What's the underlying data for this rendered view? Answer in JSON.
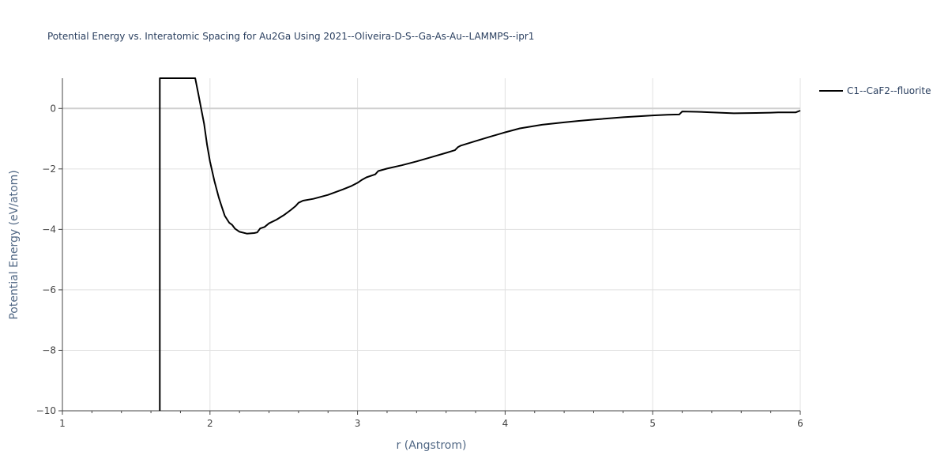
{
  "chart_data": {
    "type": "line",
    "title": "Potential Energy vs. Interatomic Spacing for Au2Ga Using 2021--Oliveira-D-S--Ga-As-Au--LAMMPS--ipr1",
    "xlabel": "r (Angstrom)",
    "ylabel": "Potential Energy (eV/atom)",
    "xlim": [
      1,
      6
    ],
    "ylim": [
      -10,
      1
    ],
    "xticks": [
      1,
      2,
      3,
      4,
      5,
      6
    ],
    "xtick_labels": [
      "1",
      "2",
      "3",
      "4",
      "5",
      "6"
    ],
    "yticks": [
      -10,
      -8,
      -6,
      -4,
      -2,
      0
    ],
    "ytick_labels": [
      "−10",
      "−8",
      "−6",
      "−4",
      "−2",
      "0"
    ],
    "grid": true,
    "legend_position": "top-right",
    "series": [
      {
        "name": "C1--CaF2--fluorite",
        "color": "#000000",
        "x": [
          1.66,
          1.66,
          1.665,
          1.9,
          1.92,
          1.94,
          1.96,
          1.98,
          2.0,
          2.03,
          2.06,
          2.08,
          2.1,
          2.13,
          2.15,
          2.17,
          2.2,
          2.25,
          2.3,
          2.32,
          2.34,
          2.37,
          2.4,
          2.45,
          2.5,
          2.55,
          2.58,
          2.6,
          2.63,
          2.7,
          2.8,
          2.9,
          2.96,
          3.0,
          3.03,
          3.06,
          3.12,
          3.14,
          3.2,
          3.3,
          3.4,
          3.5,
          3.6,
          3.66,
          3.68,
          3.7,
          3.8,
          3.9,
          4.0,
          4.1,
          4.25,
          4.4,
          4.5,
          4.6,
          4.8,
          5.0,
          5.1,
          5.18,
          5.2,
          5.3,
          5.4,
          5.55,
          5.7,
          5.8,
          5.85,
          5.97,
          6.0
        ],
        "y": [
          -10,
          1,
          1,
          1,
          0.5,
          0.0,
          -0.5,
          -1.2,
          -1.75,
          -2.4,
          -2.95,
          -3.25,
          -3.55,
          -3.78,
          -3.85,
          -3.98,
          -4.08,
          -4.14,
          -4.12,
          -4.1,
          -3.97,
          -3.92,
          -3.8,
          -3.68,
          -3.53,
          -3.35,
          -3.23,
          -3.12,
          -3.05,
          -2.99,
          -2.86,
          -2.68,
          -2.56,
          -2.46,
          -2.36,
          -2.28,
          -2.18,
          -2.07,
          -1.99,
          -1.88,
          -1.75,
          -1.61,
          -1.47,
          -1.38,
          -1.28,
          -1.23,
          -1.08,
          -0.93,
          -0.79,
          -0.66,
          -0.54,
          -0.46,
          -0.41,
          -0.37,
          -0.29,
          -0.23,
          -0.21,
          -0.2,
          -0.1,
          -0.11,
          -0.13,
          -0.16,
          -0.15,
          -0.14,
          -0.13,
          -0.13,
          -0.07
        ]
      }
    ]
  }
}
